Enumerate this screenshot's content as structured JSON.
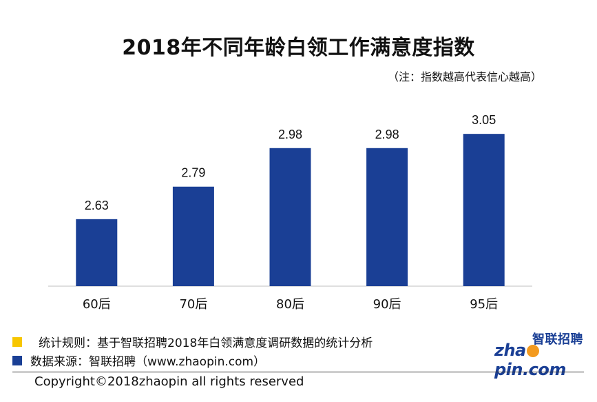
{
  "chart_data": {
    "type": "bar",
    "title": "2018年不同年龄白领工作满意度指数",
    "subtitle": "（注：指数越高代表信心越高）",
    "categories": [
      "60后",
      "70后",
      "80后",
      "90后",
      "95后"
    ],
    "values": [
      2.63,
      2.79,
      2.98,
      2.98,
      3.05
    ],
    "value_labels": [
      "2.63",
      "2.79",
      "2.98",
      "2.98",
      "3.05"
    ],
    "xlabel": "",
    "ylabel": "",
    "ylim": [
      2.3,
      3.2
    ],
    "grid": false,
    "bar_color": "#1a3f95"
  },
  "legend": [
    {
      "text": "统计规则：基于智联招聘2018年白领满意度调研数据的统计分析",
      "color": "#f7c600"
    },
    {
      "text": "数据来源：智联招聘（www.zhaopin.com）",
      "color": "#1a3f95"
    }
  ],
  "footer": {
    "copyright": "Copyright©2018zhaopin all rights reserved"
  },
  "logo": {
    "cn_text": "智联招聘",
    "en_prefix": "zha",
    "en_suffix": "pin.com",
    "mark_color": "#f39a1f",
    "text_color": "#1a3f95"
  }
}
